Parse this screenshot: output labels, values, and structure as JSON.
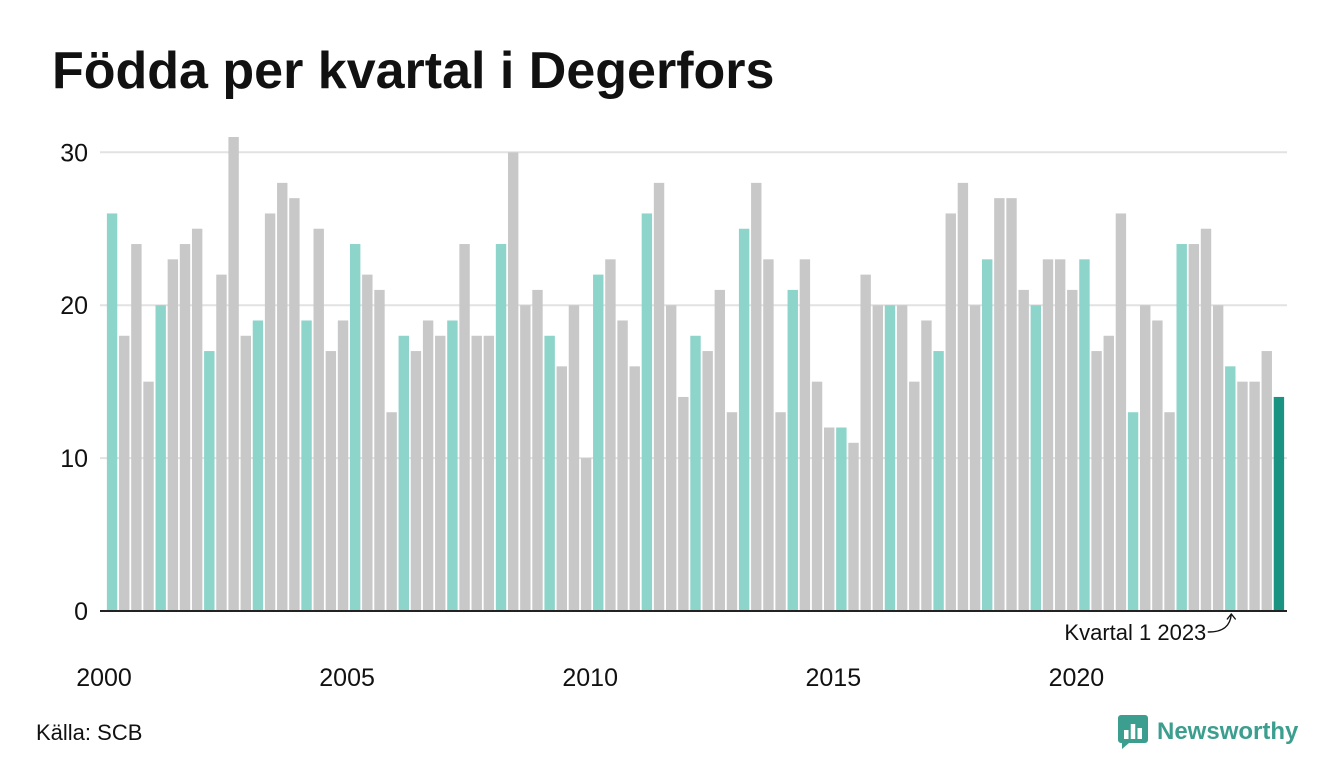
{
  "source": "Källa: SCB",
  "brand": "Newsworthy",
  "icons": {
    "brand": "newsworthy-logo-icon"
  },
  "colors": {
    "first_quarter": "#8dd4ca",
    "other_quarters": "#c8c8c8",
    "latest": "#1b9383",
    "gridline": "#e2e2e2",
    "axis": "#222222",
    "text": "#111111",
    "brand": "#3c9e8e"
  },
  "chart_data": {
    "type": "bar",
    "title": "Födda per kvartal i Degerfors",
    "x_ticks": [
      2000,
      2005,
      2010,
      2015,
      2020
    ],
    "y_ticks": [
      0,
      10,
      20,
      30
    ],
    "ylim": [
      0,
      31
    ],
    "grid": true,
    "years": [
      2000,
      2001,
      2002,
      2003,
      2004,
      2005,
      2006,
      2007,
      2008,
      2009,
      2010,
      2011,
      2012,
      2013,
      2014,
      2015,
      2016,
      2017,
      2018,
      2019,
      2020,
      2021,
      2022,
      2023,
      2024
    ],
    "quarterly_values": [
      [
        26,
        18,
        24,
        15
      ],
      [
        20,
        23,
        24,
        25
      ],
      [
        17,
        22,
        31,
        18
      ],
      [
        19,
        26,
        28,
        27
      ],
      [
        19,
        25,
        17,
        19
      ],
      [
        24,
        22,
        21,
        13
      ],
      [
        18,
        17,
        19,
        18
      ],
      [
        19,
        24,
        18,
        18
      ],
      [
        24,
        30,
        20,
        21
      ],
      [
        18,
        16,
        20,
        10
      ],
      [
        22,
        23,
        19,
        16
      ],
      [
        26,
        28,
        20,
        14
      ],
      [
        18,
        17,
        21,
        13
      ],
      [
        25,
        28,
        23,
        13
      ],
      [
        21,
        23,
        15,
        12
      ],
      [
        12,
        11,
        22,
        20
      ],
      [
        20,
        20,
        15,
        19
      ],
      [
        17,
        26,
        28,
        20
      ],
      [
        23,
        27,
        27,
        21
      ],
      [
        20,
        23,
        23,
        21
      ],
      [
        23,
        17,
        18,
        26
      ],
      [
        13,
        20,
        19,
        13
      ],
      [
        24,
        24,
        25,
        20
      ],
      [
        16,
        15,
        15,
        17
      ],
      [
        14
      ]
    ],
    "highlight": {
      "year": 2024,
      "quarter": 1
    },
    "annotation": {
      "text": "Kvartal 1 2023",
      "year": 2023,
      "quarter": 1
    }
  }
}
